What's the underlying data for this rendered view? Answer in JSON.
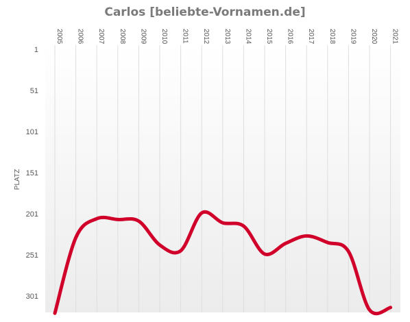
{
  "chart_data": {
    "type": "line",
    "title": "Carlos [beliebte-Vornamen.de]",
    "ylabel": "PLATZ",
    "xlabel": "",
    "categories": [
      "2005",
      "2006",
      "2007",
      "2008",
      "2009",
      "2010",
      "2011",
      "2012",
      "2013",
      "2014",
      "2015",
      "2016",
      "2017",
      "2018",
      "2019",
      "2020",
      "2021"
    ],
    "y_ticks": [
      "1",
      "51",
      "101",
      "151",
      "201",
      "251",
      "301"
    ],
    "ylim": [
      1,
      320
    ],
    "y_reversed": true,
    "grid": "vertical",
    "series": [
      {
        "values": [
          322,
          230,
          207,
          208,
          210,
          239,
          246,
          200,
          212,
          216,
          250,
          237,
          228,
          236,
          247,
          318,
          315
        ],
        "color": "#d0002a"
      }
    ]
  }
}
